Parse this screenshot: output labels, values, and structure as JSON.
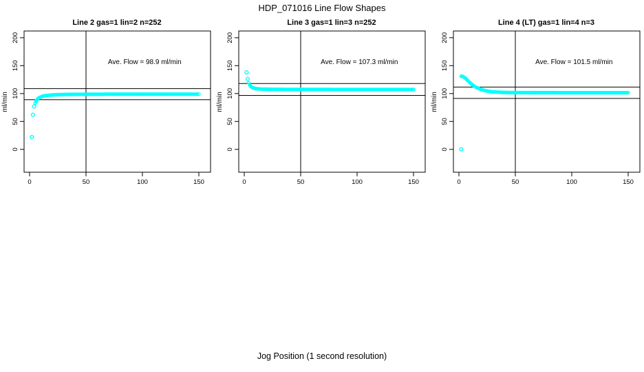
{
  "figure": {
    "title": "HDP_071016  Line Flow Shapes",
    "xlabel": "Jog Position (1 second resolution)",
    "background_color": "#ffffff",
    "axis_color": "#000000",
    "point_color": "#00FFFF"
  },
  "chart_data": [
    {
      "type": "scatter",
      "title": "Line 2 gas=1 lin=2 n=252",
      "annotation": "Ave. Flow =  98.9  ml/min",
      "ave_flow_ml_min": 98.9,
      "ylabel": "ml/min",
      "xlim": [
        0,
        150
      ],
      "ylim": [
        0,
        200
      ],
      "x_ticks": [
        0,
        50,
        100,
        150
      ],
      "y_ticks": [
        0,
        50,
        100,
        150,
        200
      ],
      "ref_lines_y": [
        89.0,
        108.8
      ],
      "vline_x": 50,
      "grid": false,
      "isolated_points": [
        [
          2,
          22
        ],
        [
          3,
          62
        ],
        [
          4,
          77
        ]
      ],
      "curve_points": [
        [
          5,
          83
        ],
        [
          6,
          87
        ],
        [
          7,
          90
        ],
        [
          8,
          92
        ],
        [
          10,
          94
        ],
        [
          12,
          95.5
        ],
        [
          15,
          96.5
        ],
        [
          20,
          97.5
        ],
        [
          25,
          98
        ],
        [
          30,
          98.3
        ],
        [
          40,
          98.6
        ],
        [
          60,
          98.8
        ],
        [
          80,
          98.9
        ],
        [
          100,
          98.9
        ],
        [
          120,
          98.9
        ],
        [
          150,
          98.9
        ]
      ]
    },
    {
      "type": "scatter",
      "title": "Line 3 gas=1 lin=3 n=252",
      "annotation": "Ave. Flow =  107.3  ml/min",
      "ave_flow_ml_min": 107.3,
      "ylabel": "ml/min",
      "xlim": [
        0,
        150
      ],
      "ylim": [
        0,
        200
      ],
      "x_ticks": [
        0,
        50,
        100,
        150
      ],
      "y_ticks": [
        0,
        50,
        100,
        150,
        200
      ],
      "ref_lines_y": [
        96.6,
        118.0
      ],
      "vline_x": 50,
      "grid": false,
      "isolated_points": [
        [
          2,
          138
        ],
        [
          3,
          126
        ]
      ],
      "curve_points": [
        [
          4,
          119
        ],
        [
          5,
          115
        ],
        [
          6,
          112.5
        ],
        [
          7,
          111
        ],
        [
          8,
          110
        ],
        [
          10,
          109
        ],
        [
          12,
          108.5
        ],
        [
          15,
          108
        ],
        [
          20,
          107.8
        ],
        [
          30,
          107.5
        ],
        [
          50,
          107.4
        ],
        [
          100,
          107.3
        ],
        [
          150,
          107.3
        ]
      ]
    },
    {
      "type": "scatter",
      "title": "Line 4 (LT) gas=1 lin=4 n=3",
      "annotation": "Ave. Flow =  101.5  ml/min",
      "ave_flow_ml_min": 101.5,
      "ylabel": "ml/min",
      "xlim": [
        0,
        150
      ],
      "ylim": [
        0,
        200
      ],
      "x_ticks": [
        0,
        50,
        100,
        150
      ],
      "y_ticks": [
        0,
        50,
        100,
        150,
        200
      ],
      "ref_lines_y": [
        91.3,
        111.7
      ],
      "vline_x": 50,
      "grid": false,
      "isolated_points": [
        [
          2,
          0
        ]
      ],
      "curve_points": [
        [
          2,
          131
        ],
        [
          3,
          131
        ],
        [
          4,
          130
        ],
        [
          5,
          128.5
        ],
        [
          6,
          127
        ],
        [
          7,
          125
        ],
        [
          8,
          123
        ],
        [
          10,
          119
        ],
        [
          12,
          115.5
        ],
        [
          15,
          111.5
        ],
        [
          20,
          107
        ],
        [
          25,
          104.5
        ],
        [
          30,
          103
        ],
        [
          40,
          102
        ],
        [
          50,
          101.8
        ],
        [
          70,
          101.6
        ],
        [
          100,
          101.5
        ],
        [
          150,
          101.5
        ]
      ]
    }
  ]
}
